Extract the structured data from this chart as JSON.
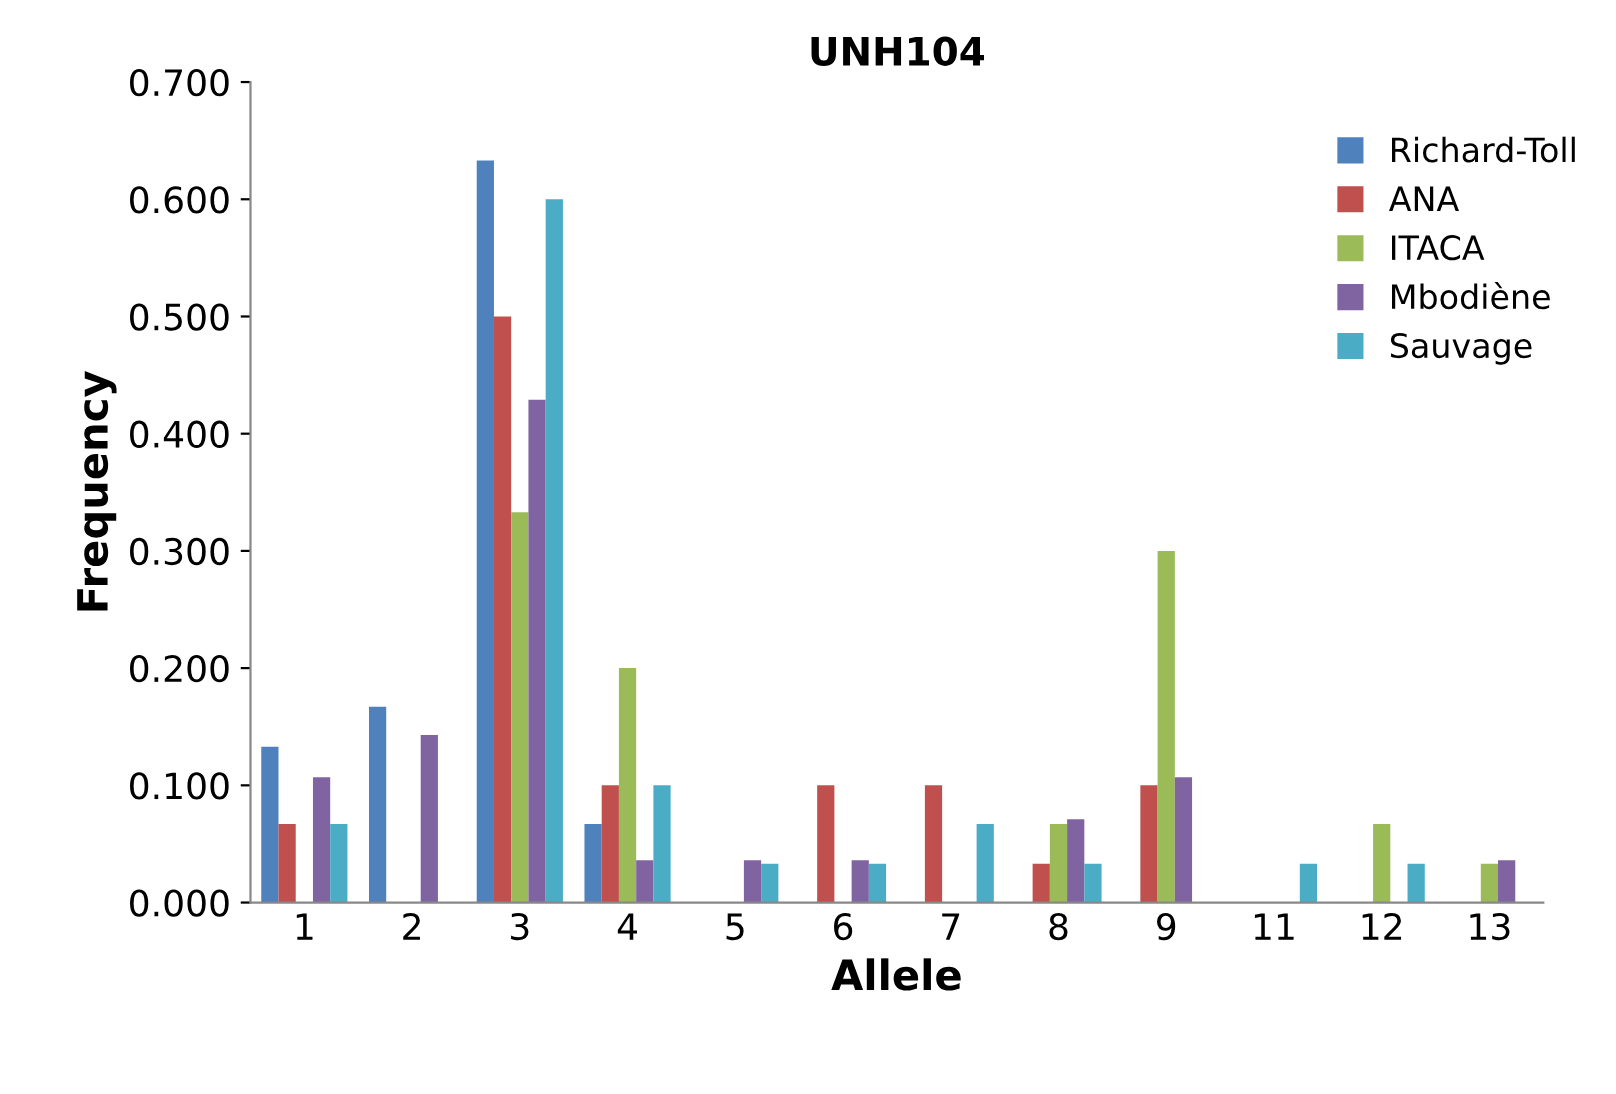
{
  "chart_data": {
    "type": "bar",
    "title": "UNH104",
    "xlabel": "Allele",
    "ylabel": "Frequency",
    "categories": [
      "1",
      "2",
      "3",
      "4",
      "5",
      "6",
      "7",
      "8",
      "9",
      "11",
      "12",
      "13"
    ],
    "series": [
      {
        "name": "Richard-Toll",
        "color": "#4f81bd",
        "values": [
          0.133,
          0.167,
          0.633,
          0.067,
          0,
          0,
          0,
          0,
          0,
          0,
          0,
          0
        ]
      },
      {
        "name": "ANA",
        "color": "#c0504d",
        "values": [
          0.067,
          0,
          0.5,
          0.1,
          0,
          0.1,
          0.1,
          0.033,
          0.1,
          0,
          0,
          0
        ]
      },
      {
        "name": "ITACA",
        "color": "#9bbb59",
        "values": [
          0,
          0,
          0.333,
          0.2,
          0,
          0,
          0,
          0.067,
          0.3,
          0,
          0.067,
          0.033
        ]
      },
      {
        "name": "Mbodiène",
        "color": "#8064a2",
        "values": [
          0.107,
          0.143,
          0.429,
          0.036,
          0.036,
          0.036,
          0,
          0.071,
          0.107,
          0,
          0,
          0.036
        ]
      },
      {
        "name": "Sauvage",
        "color": "#4bacc6",
        "values": [
          0.067,
          0,
          0.6,
          0.1,
          0.033,
          0.033,
          0.067,
          0.033,
          0,
          0.033,
          0.033,
          0
        ]
      }
    ],
    "ylim": [
      0,
      0.7
    ],
    "yticks": [
      {
        "value": 0,
        "label": "0.000"
      },
      {
        "value": 0.1,
        "label": "0.100"
      },
      {
        "value": 0.2,
        "label": "0.200"
      },
      {
        "value": 0.3,
        "label": "0.300"
      },
      {
        "value": 0.4,
        "label": "0.400"
      },
      {
        "value": 0.5,
        "label": "0.500"
      },
      {
        "value": 0.6,
        "label": "0.600"
      },
      {
        "value": 0.7,
        "label": "0.700"
      }
    ],
    "grid": false,
    "legend": "top right"
  }
}
